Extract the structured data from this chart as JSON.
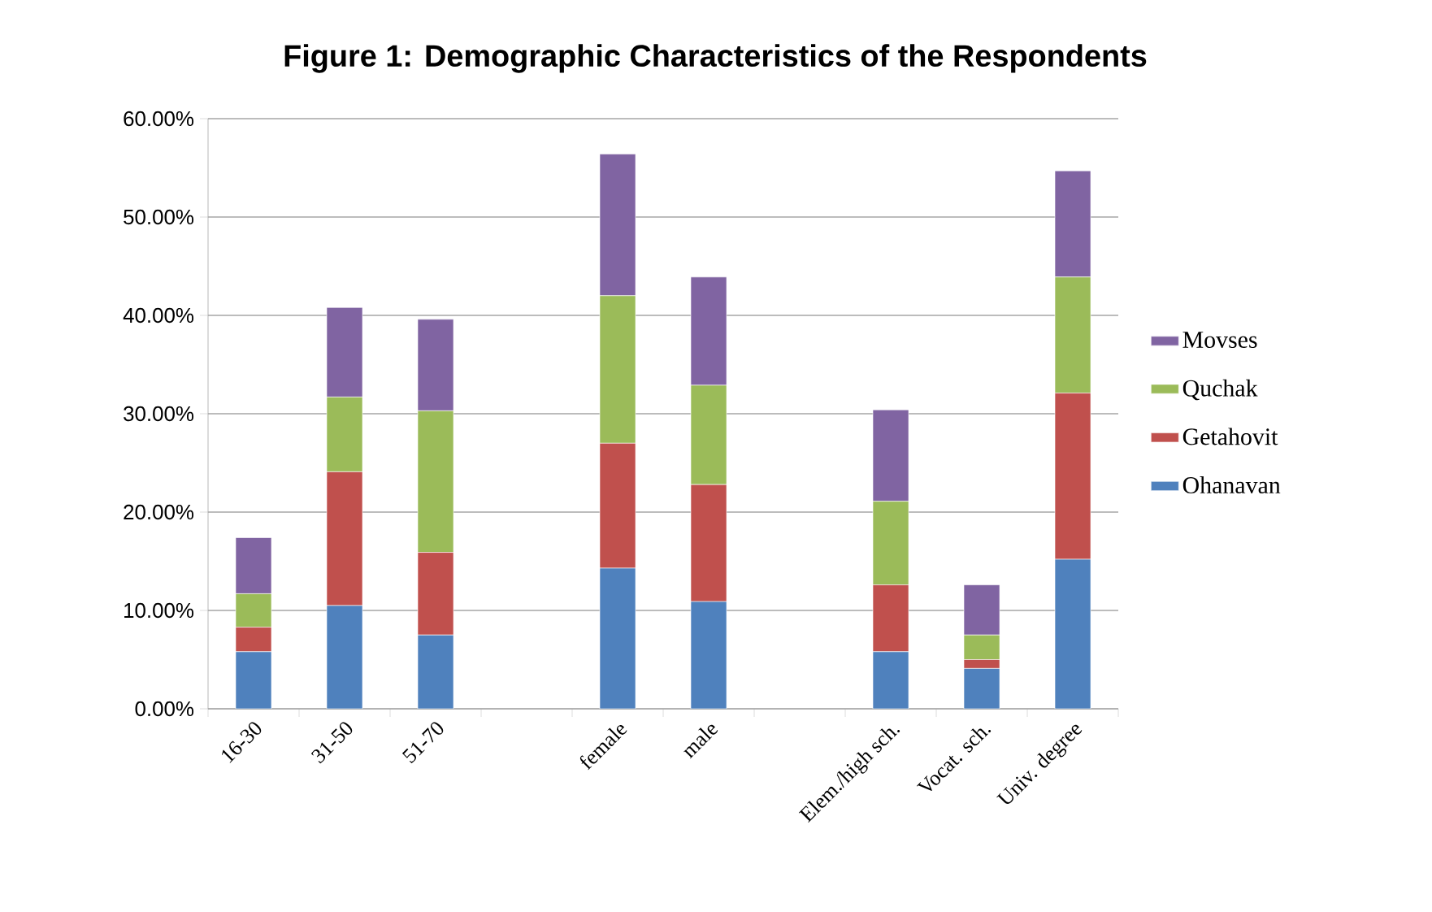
{
  "chart_data": {
    "type": "bar",
    "stacked": true,
    "title": "Figure 1: Demographic Characteristics of the Respondents",
    "categories": [
      "16-30",
      "31-50",
      "51-70",
      null,
      "female",
      "male",
      null,
      "Elem./high sch.",
      "Vocat. sch.",
      "Univ. degree"
    ],
    "series": [
      {
        "name": "Ohanavan",
        "color": "#4f81bd",
        "values": [
          5.8,
          10.5,
          7.5,
          null,
          14.3,
          10.9,
          null,
          5.8,
          4.1,
          15.2
        ]
      },
      {
        "name": "Getahovit",
        "color": "#c0504d",
        "values": [
          2.5,
          13.6,
          8.4,
          null,
          12.7,
          11.9,
          null,
          6.8,
          0.9,
          16.9
        ]
      },
      {
        "name": "Quchak",
        "color": "#9bbb59",
        "values": [
          3.4,
          7.6,
          14.4,
          null,
          15.0,
          10.1,
          null,
          8.5,
          2.5,
          11.8
        ]
      },
      {
        "name": "Movses",
        "color": "#8064a2",
        "values": [
          5.7,
          9.1,
          9.3,
          null,
          14.4,
          11.0,
          null,
          9.3,
          5.1,
          10.8
        ]
      }
    ],
    "ylim": [
      0,
      60
    ],
    "yticks": [
      {
        "value": 0,
        "label": "0.00%"
      },
      {
        "value": 10,
        "label": "10.00%"
      },
      {
        "value": 20,
        "label": "20.00%"
      },
      {
        "value": 30,
        "label": "30.00%"
      },
      {
        "value": 40,
        "label": "40.00%"
      },
      {
        "value": 50,
        "label": "50.00%"
      },
      {
        "value": 60,
        "label": "60.00%"
      }
    ],
    "grid": "y",
    "legend": "right"
  }
}
